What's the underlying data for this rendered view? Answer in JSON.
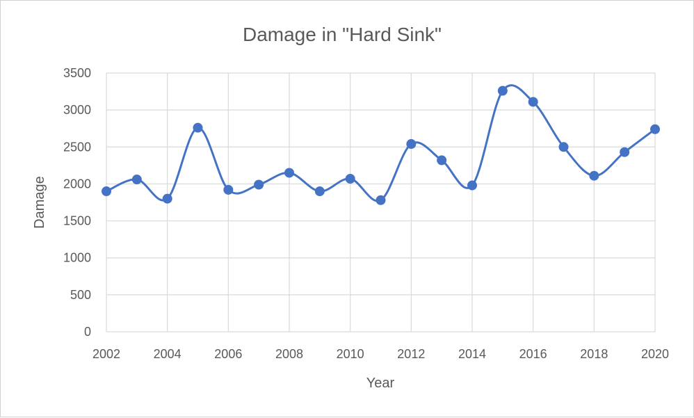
{
  "chart_data": {
    "type": "line",
    "title": "Damage in \"Hard Sink\"",
    "xlabel": "Year",
    "ylabel": "Damage",
    "x": [
      2002,
      2003,
      2004,
      2005,
      2006,
      2007,
      2008,
      2009,
      2010,
      2011,
      2012,
      2013,
      2014,
      2015,
      2016,
      2017,
      2018,
      2019,
      2020
    ],
    "series": [
      {
        "values": [
          1900,
          2060,
          1800,
          2760,
          1920,
          1990,
          2150,
          1900,
          2070,
          1780,
          2540,
          2320,
          1980,
          3260,
          3110,
          2500,
          2110,
          2430,
          2740
        ]
      }
    ],
    "xlim": [
      2002,
      2020
    ],
    "ylim": [
      0,
      3500
    ],
    "x_ticks": [
      "2002",
      "2004",
      "2006",
      "2008",
      "2010",
      "2012",
      "2014",
      "2016",
      "2018",
      "2020"
    ],
    "y_ticks": [
      "0",
      "500",
      "1000",
      "1500",
      "2000",
      "2500",
      "3000",
      "3500"
    ],
    "grid": true,
    "smooth": true,
    "color": "#4472c4"
  }
}
